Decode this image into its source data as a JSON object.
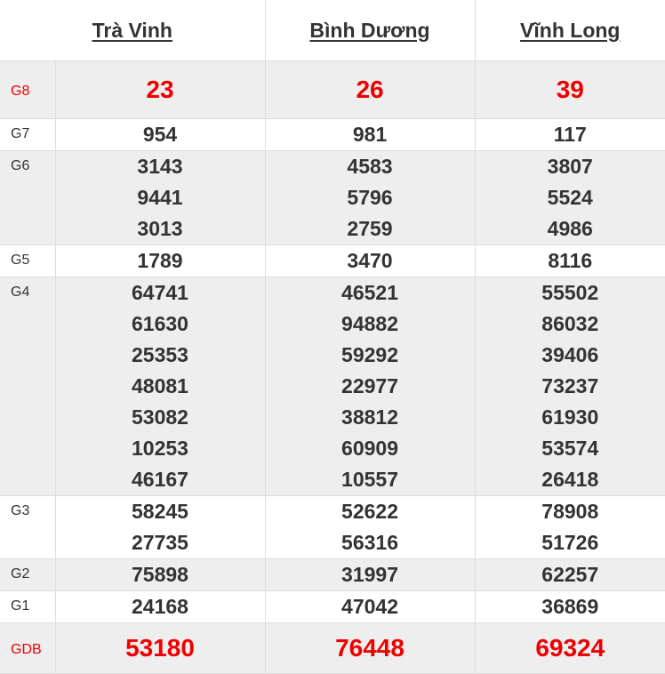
{
  "provinces": [
    "Trà Vinh",
    "Bình Dương",
    "Vĩnh Long"
  ],
  "prizes": [
    {
      "label": "G8",
      "values": [
        [
          "23"
        ],
        [
          "26"
        ],
        [
          "39"
        ]
      ]
    },
    {
      "label": "G7",
      "values": [
        [
          "954"
        ],
        [
          "981"
        ],
        [
          "117"
        ]
      ]
    },
    {
      "label": "G6",
      "values": [
        [
          "3143",
          "9441",
          "3013"
        ],
        [
          "4583",
          "5796",
          "2759"
        ],
        [
          "3807",
          "5524",
          "4986"
        ]
      ]
    },
    {
      "label": "G5",
      "values": [
        [
          "1789"
        ],
        [
          "3470"
        ],
        [
          "8116"
        ]
      ]
    },
    {
      "label": "G4",
      "values": [
        [
          "64741",
          "61630",
          "25353",
          "48081",
          "53082",
          "10253",
          "46167"
        ],
        [
          "46521",
          "94882",
          "59292",
          "22977",
          "38812",
          "60909",
          "10557"
        ],
        [
          "55502",
          "86032",
          "39406",
          "73237",
          "61930",
          "53574",
          "26418"
        ]
      ]
    },
    {
      "label": "G3",
      "values": [
        [
          "58245",
          "27735"
        ],
        [
          "52622",
          "56316"
        ],
        [
          "78908",
          "51726"
        ]
      ]
    },
    {
      "label": "G2",
      "values": [
        [
          "75898"
        ],
        [
          "31997"
        ],
        [
          "62257"
        ]
      ]
    },
    {
      "label": "G1",
      "values": [
        [
          "24168"
        ],
        [
          "47042"
        ],
        [
          "36869"
        ]
      ]
    },
    {
      "label": "GDB",
      "values": [
        [
          "53180"
        ],
        [
          "76448"
        ],
        [
          "69324"
        ]
      ]
    }
  ],
  "colors": {
    "highlight": "#ee0000",
    "text": "#333333",
    "alt_row": "#eeeeee"
  }
}
